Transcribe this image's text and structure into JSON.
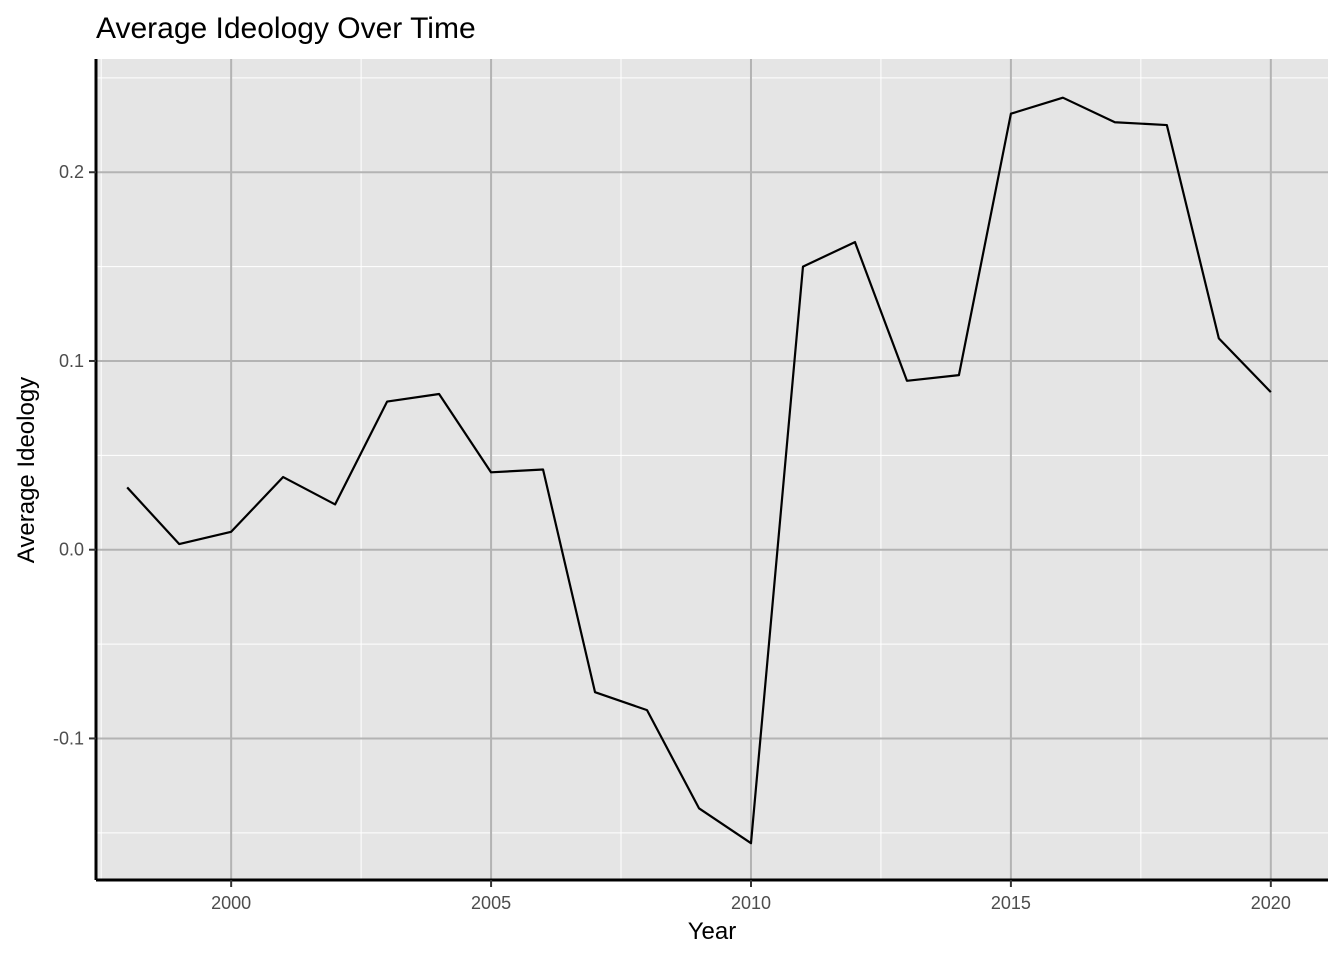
{
  "chart_data": {
    "type": "line",
    "title": "Average Ideology Over Time",
    "xlabel": "Year",
    "ylabel": "Average Ideology",
    "xlim": [
      1997.4,
      2021.1
    ],
    "ylim": [
      -0.175,
      0.26
    ],
    "x_ticks": [
      2000,
      2005,
      2010,
      2015,
      2020
    ],
    "x_tick_labels": [
      "2000",
      "2005",
      "2010",
      "2015",
      "2020"
    ],
    "x_minor_ticks": [
      1997.5,
      2002.5,
      2007.5,
      2012.5,
      2017.5
    ],
    "y_ticks": [
      -0.1,
      0.0,
      0.1,
      0.2
    ],
    "y_tick_labels": [
      "-0.1",
      "0.0",
      "0.1",
      "0.2"
    ],
    "y_minor_ticks": [
      -0.15,
      -0.05,
      0.05,
      0.15,
      0.25
    ],
    "grid": true,
    "background": "#e5e5e5",
    "major_grid_color": "#b3b3b3",
    "minor_grid_color": "#ffffff",
    "line_color": "#000000",
    "series": [
      {
        "x": [
          1998,
          1999,
          2000,
          2001,
          2002,
          2003,
          2004,
          2005,
          2006,
          2007,
          2008,
          2009,
          2010,
          2011,
          2012,
          2013,
          2014,
          2015,
          2016,
          2017,
          2018,
          2019,
          2020
        ],
        "values": [
          0.033,
          0.003,
          0.0095,
          0.0385,
          0.024,
          0.0785,
          0.0825,
          0.041,
          0.0425,
          -0.0755,
          -0.085,
          -0.137,
          -0.1555,
          0.15,
          0.163,
          0.0895,
          0.0925,
          0.231,
          0.2395,
          0.2265,
          0.225,
          0.112,
          0.0835
        ]
      }
    ]
  }
}
